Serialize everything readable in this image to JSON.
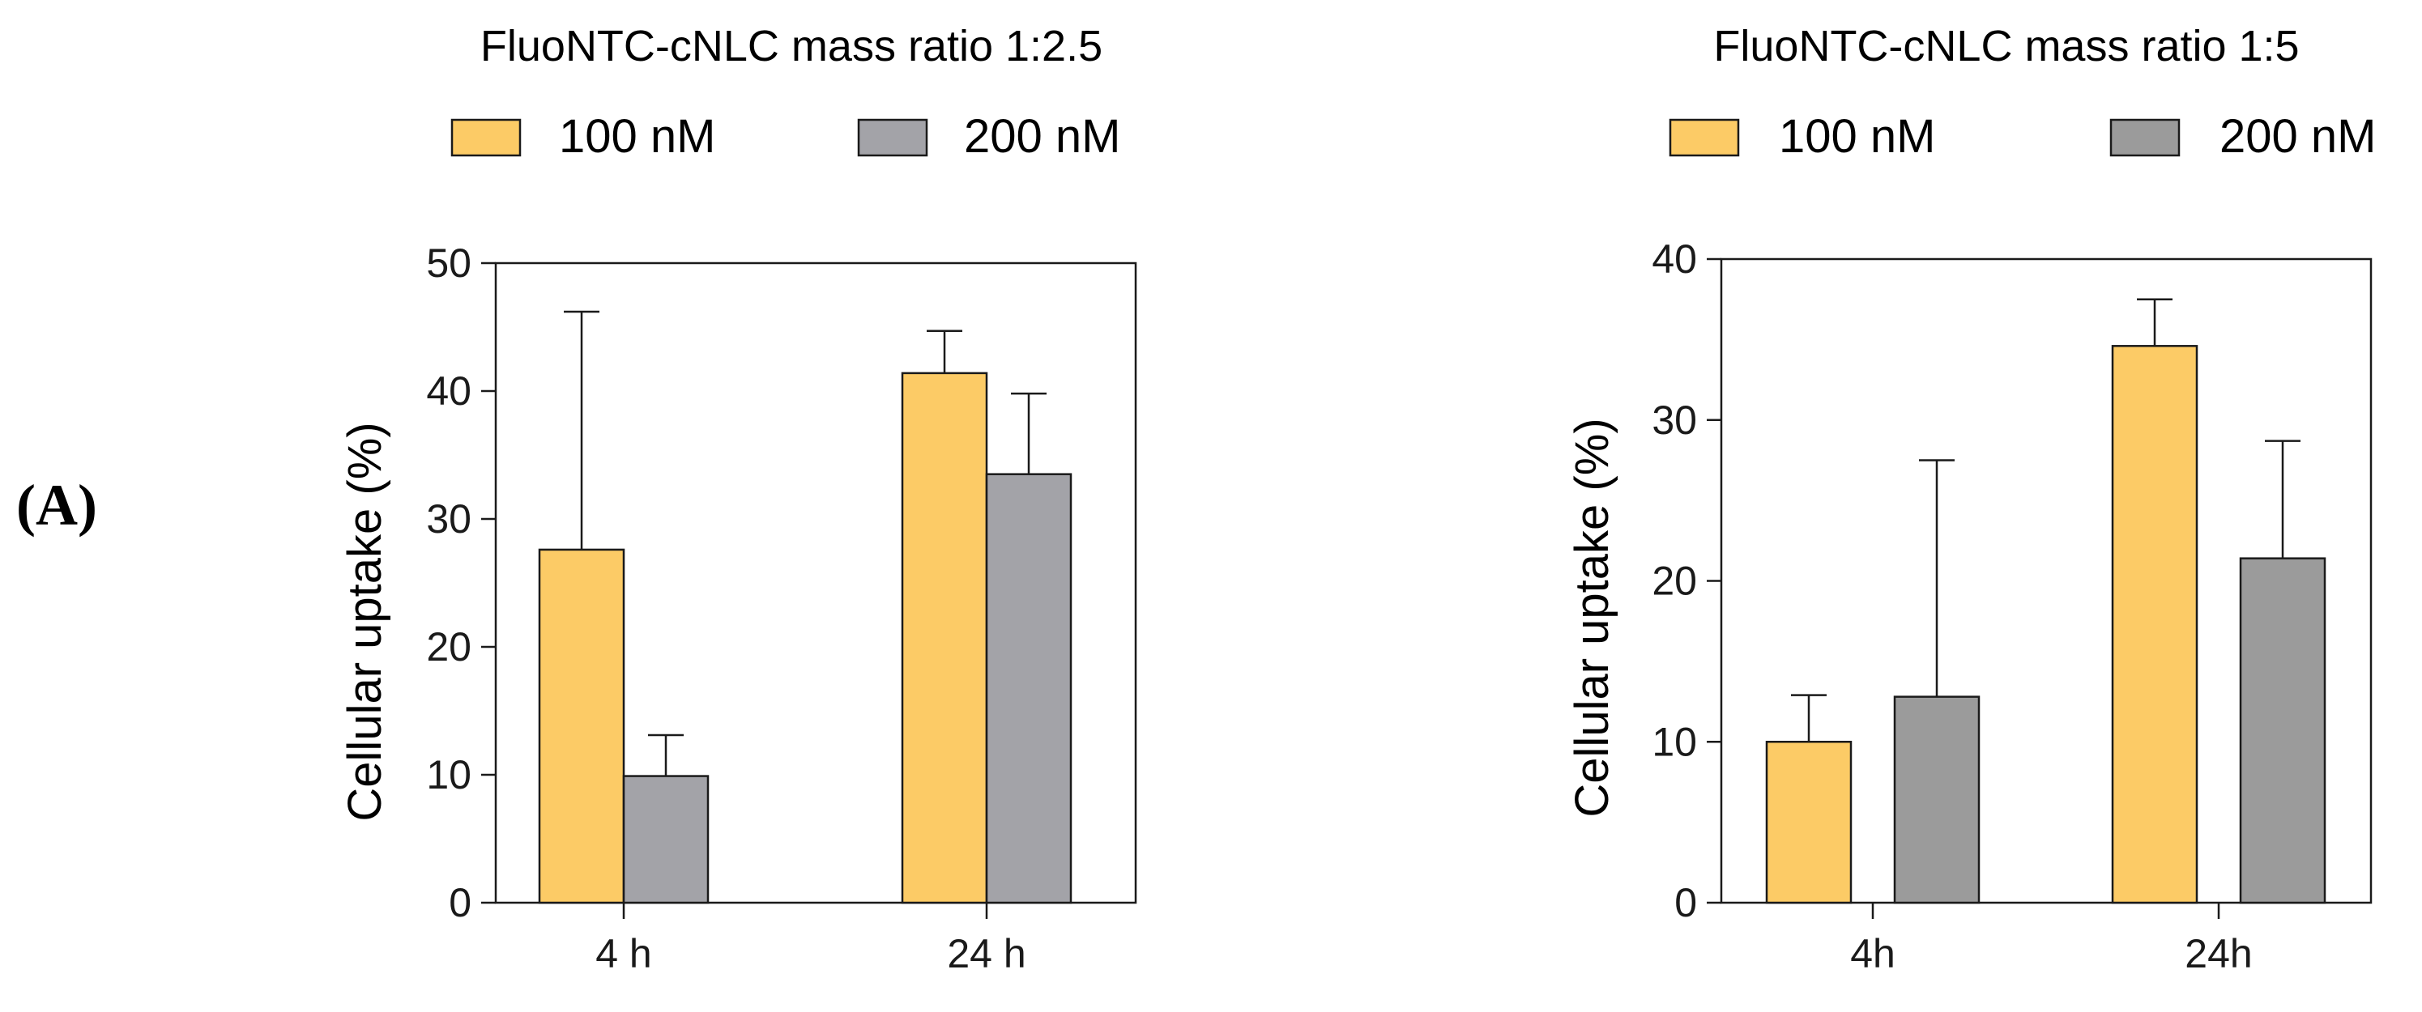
{
  "panel_label": "(A)",
  "colors": {
    "s100": "#FCCB66",
    "s200_left": "#A3A3A8",
    "s200_right": "#9B9B9B",
    "line": "#1a1a1a"
  },
  "chart_data": [
    {
      "type": "bar",
      "title": "FluoNTC-cNLC mass ratio 1:2.5",
      "xlabel": "",
      "ylabel": "Cellular uptake (%)",
      "categories": [
        "4 h",
        "24 h"
      ],
      "ylim": [
        0,
        50
      ],
      "yticks": [
        "0",
        "10",
        "20",
        "30",
        "40",
        "50"
      ],
      "series": [
        {
          "name": "100 nM",
          "values": [
            27.6,
            41.4
          ],
          "errors": [
            18.6,
            3.3
          ]
        },
        {
          "name": "200 nM",
          "values": [
            9.9,
            33.5
          ],
          "errors": [
            3.2,
            6.3
          ]
        }
      ],
      "legend": "top",
      "error_bars": "upper"
    },
    {
      "type": "bar",
      "title": "FluoNTC-cNLC mass ratio 1:5",
      "xlabel": "",
      "ylabel": "Cellular uptake (%)",
      "categories": [
        "4h",
        "24h"
      ],
      "ylim": [
        0,
        40
      ],
      "yticks": [
        "0",
        "10",
        "20",
        "30",
        "40"
      ],
      "series": [
        {
          "name": "100 nM",
          "values": [
            10.0,
            34.6
          ],
          "errors": [
            2.9,
            2.9
          ]
        },
        {
          "name": "200 nM",
          "values": [
            12.8,
            21.4
          ],
          "errors": [
            14.7,
            7.3
          ]
        }
      ],
      "legend": "top",
      "error_bars": "upper"
    }
  ]
}
